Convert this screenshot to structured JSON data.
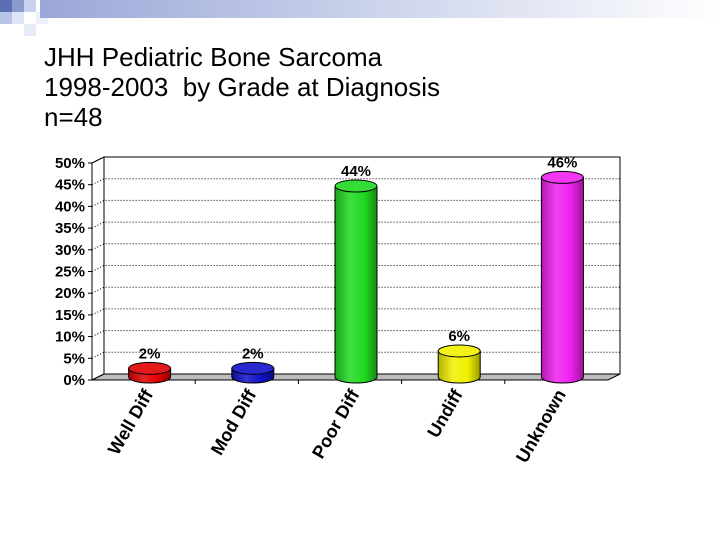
{
  "slide": {
    "title_lines": [
      "JHH Pediatric Bone Sarcoma",
      "1998-2003  by Grade at Diagnosis",
      "n=48"
    ]
  },
  "chart_data": {
    "type": "bar",
    "title": "",
    "xlabel": "",
    "ylabel": "",
    "categories": [
      "Well Diff",
      "Mod Diff",
      "Poor Diff",
      "Undiff",
      "Unknown"
    ],
    "values": [
      2,
      2,
      44,
      6,
      46
    ],
    "data_labels": [
      "2%",
      "2%",
      "44%",
      "6%",
      "46%"
    ],
    "colors": [
      "#e00000",
      "#1010c8",
      "#20d820",
      "#f0f000",
      "#f020f0"
    ],
    "ylim": [
      0,
      50
    ],
    "yticks": [
      "0%",
      "5%",
      "10%",
      "15%",
      "20%",
      "25%",
      "30%",
      "35%",
      "40%",
      "45%",
      "50%"
    ],
    "grid": true,
    "legend": "none",
    "style": "3d-cylinder"
  }
}
